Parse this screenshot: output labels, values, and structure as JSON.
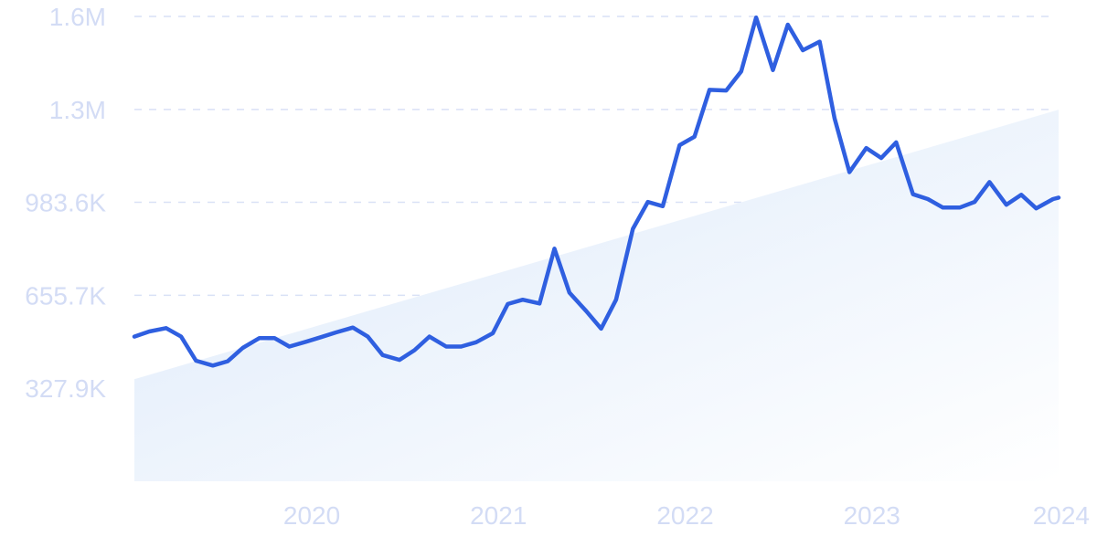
{
  "chart_data": {
    "type": "line",
    "title": "",
    "xlabel": "",
    "ylabel": "",
    "x_tick_labels": [
      "2020",
      "2021",
      "2022",
      "2023",
      "2024"
    ],
    "x_ticks": [
      2020,
      2021,
      2022,
      2023,
      2024
    ],
    "xlim": [
      2019.05,
      2024.0
    ],
    "y_tick_labels": [
      "327.9K",
      "655.7K",
      "983.6K",
      "1.3M",
      "1.6M"
    ],
    "y_ticks": [
      327900,
      655700,
      983600,
      1311000,
      1639000
    ],
    "ylim": [
      0,
      1639000
    ],
    "grid": true,
    "legend": "none",
    "colors": {
      "line": "#2f5fe0",
      "grid": "#d9e1f6",
      "tick_text": "#d3dcf5",
      "trend_fill_top": "#dce9fa",
      "trend_fill_bottom": "#ffffff"
    },
    "trend": {
      "x": [
        2019.05,
        2024.0
      ],
      "y": [
        360000,
        1310000
      ]
    },
    "series": [
      {
        "x": [
          2019.05,
          2019.13,
          2019.22,
          2019.3,
          2019.38,
          2019.47,
          2019.55,
          2019.63,
          2019.72,
          2019.8,
          2019.88,
          2019.97,
          2020.05,
          2020.13,
          2020.22,
          2020.3,
          2020.38,
          2020.47,
          2020.55,
          2020.63,
          2020.72,
          2020.8,
          2020.88,
          2020.97,
          2021.05,
          2021.13,
          2021.22,
          2021.3,
          2021.38,
          2021.47,
          2021.55,
          2021.63,
          2021.72,
          2021.8,
          2021.88,
          2021.97,
          2022.05,
          2022.13,
          2022.22,
          2022.3,
          2022.38,
          2022.47,
          2022.55,
          2022.63,
          2022.72,
          2022.8,
          2022.88,
          2022.97,
          2023.05,
          2023.13,
          2023.22,
          2023.3,
          2023.38,
          2023.47,
          2023.55,
          2023.63,
          2023.72,
          2023.8,
          2023.88,
          2023.97,
          2024.0
        ],
        "y": [
          510000,
          528000,
          540000,
          510000,
          425000,
          408000,
          423000,
          470000,
          505000,
          505000,
          475000,
          492000,
          508000,
          525000,
          542000,
          510000,
          445000,
          428000,
          462000,
          510000,
          475000,
          475000,
          490000,
          522000,
          625000,
          640000,
          627000,
          820000,
          665000,
          600000,
          538000,
          640000,
          890000,
          985000,
          970000,
          1185000,
          1215000,
          1380000,
          1378000,
          1445000,
          1635000,
          1450000,
          1610000,
          1520000,
          1550000,
          1280000,
          1090000,
          1175000,
          1140000,
          1195000,
          1012000,
          995000,
          965000,
          965000,
          985000,
          1055000,
          975000,
          1010000,
          962000,
          995000,
          1000000
        ]
      }
    ]
  }
}
